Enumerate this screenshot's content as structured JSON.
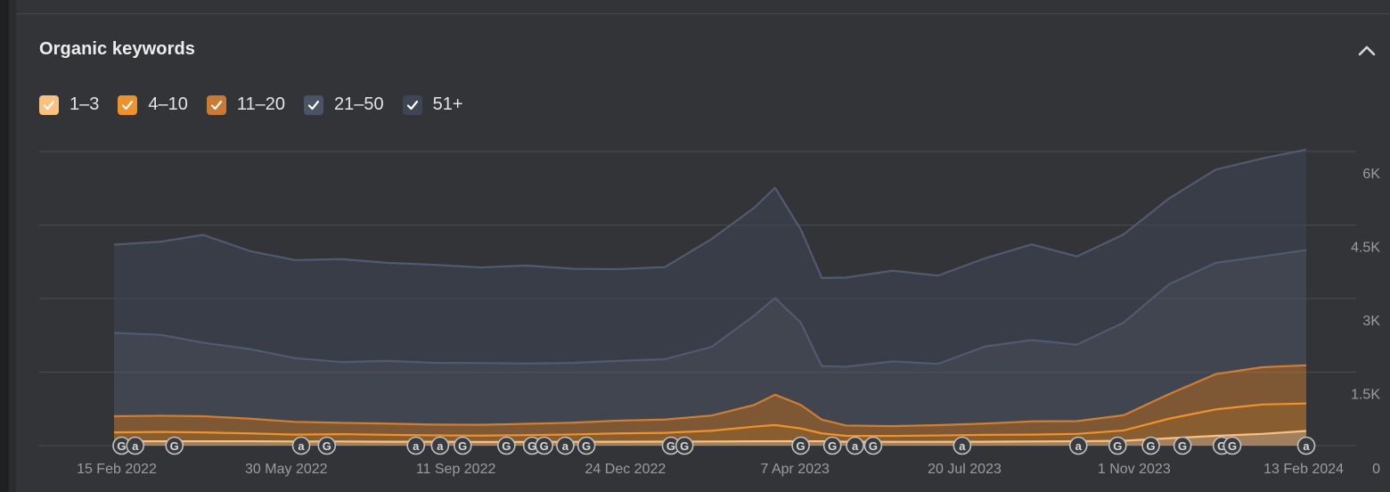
{
  "header": {
    "title": "Organic keywords"
  },
  "legend": [
    {
      "label": "1–3",
      "color": "#f9c07f"
    },
    {
      "label": "4–10",
      "color": "#f0922b"
    },
    {
      "label": "11–20",
      "color": "#c97a34"
    },
    {
      "label": "21–50",
      "color": "#4a5466"
    },
    {
      "label": "51+",
      "color": "#3e4655"
    }
  ],
  "icons": {
    "collapse": "chevron-up-icon",
    "check": "check-icon",
    "google_update": "google-update-icon",
    "annotation": "annotation-icon"
  },
  "chart_data": {
    "type": "area",
    "stacked": true,
    "x_ticks": [
      "15 Feb 2022",
      "30 May 2022",
      "11 Sep 2022",
      "24 Dec 2022",
      "7 Apr 2023",
      "20 Jul 2023",
      "1 Nov 2023",
      "13 Feb 2024"
    ],
    "y_ticks": [
      "0",
      "1.5K",
      "3K",
      "4.5K",
      "6K"
    ],
    "ylim": [
      0,
      6000
    ],
    "grid": true,
    "x": [
      "2022-01-01",
      "2022-02-01",
      "2022-03-01",
      "2022-04-01",
      "2022-05-01",
      "2022-06-01",
      "2022-07-01",
      "2022-08-01",
      "2022-09-01",
      "2022-10-01",
      "2022-11-01",
      "2022-12-01",
      "2023-01-01",
      "2023-02-01",
      "2023-03-01",
      "2023-03-15",
      "2023-04-01",
      "2023-04-15",
      "2023-05-01",
      "2023-06-01",
      "2023-07-01",
      "2023-08-01",
      "2023-09-01",
      "2023-10-01",
      "2023-11-01",
      "2023-12-01",
      "2024-01-01",
      "2024-02-01",
      "2024-03-01"
    ],
    "series": [
      {
        "name": "1–3",
        "values": [
          90,
          90,
          90,
          90,
          85,
          85,
          80,
          80,
          75,
          75,
          78,
          80,
          82,
          85,
          88,
          90,
          92,
          90,
          80,
          78,
          78,
          80,
          85,
          90,
          100,
          150,
          200,
          240,
          300
        ]
      },
      {
        "name": "4–10",
        "values": [
          180,
          190,
          180,
          160,
          140,
          150,
          140,
          130,
          130,
          140,
          150,
          170,
          180,
          220,
          300,
          330,
          260,
          160,
          120,
          120,
          130,
          140,
          140,
          150,
          210,
          400,
          540,
          600,
          560
        ]
      },
      {
        "name": "11–20",
        "values": [
          330,
          330,
          330,
          300,
          260,
          230,
          230,
          220,
          220,
          230,
          240,
          260,
          270,
          310,
          440,
          620,
          480,
          280,
          210,
          200,
          210,
          230,
          270,
          260,
          310,
          500,
          720,
          760,
          780
        ]
      },
      {
        "name": "21–50",
        "values": [
          1700,
          1650,
          1500,
          1420,
          1300,
          1240,
          1280,
          1260,
          1260,
          1230,
          1220,
          1220,
          1230,
          1400,
          1820,
          1970,
          1680,
          1090,
          1200,
          1320,
          1250,
          1570,
          1660,
          1560,
          1890,
          2240,
          2270,
          2260,
          2350
        ]
      },
      {
        "name": "51+",
        "values": [
          1800,
          1900,
          2200,
          2000,
          2000,
          2100,
          2000,
          2000,
          1950,
          2000,
          1920,
          1870,
          1880,
          2200,
          2200,
          2250,
          1900,
          1800,
          1820,
          1850,
          1800,
          1800,
          1950,
          1800,
          1800,
          1750,
          1900,
          2000,
          2050
        ]
      }
    ],
    "markers": [
      {
        "x": "2022-01-06",
        "icon": "G"
      },
      {
        "x": "2022-01-15",
        "icon": "a"
      },
      {
        "x": "2022-02-10",
        "icon": "G"
      },
      {
        "x": "2022-05-05",
        "icon": "a"
      },
      {
        "x": "2022-05-22",
        "icon": "G"
      },
      {
        "x": "2022-07-20",
        "icon": "a"
      },
      {
        "x": "2022-08-05",
        "icon": "a"
      },
      {
        "x": "2022-08-20",
        "icon": "G"
      },
      {
        "x": "2022-09-18",
        "icon": "G"
      },
      {
        "x": "2022-10-05",
        "icon": "G"
      },
      {
        "x": "2022-10-13",
        "icon": "G"
      },
      {
        "x": "2022-10-27",
        "icon": "a"
      },
      {
        "x": "2022-11-10",
        "icon": "G"
      },
      {
        "x": "2023-01-05",
        "icon": "G"
      },
      {
        "x": "2023-01-14",
        "icon": "G"
      },
      {
        "x": "2023-04-01",
        "icon": "G"
      },
      {
        "x": "2023-04-22",
        "icon": "G"
      },
      {
        "x": "2023-05-07",
        "icon": "a"
      },
      {
        "x": "2023-05-19",
        "icon": "G"
      },
      {
        "x": "2023-07-17",
        "icon": "a"
      },
      {
        "x": "2023-10-02",
        "icon": "a"
      },
      {
        "x": "2023-10-28",
        "icon": "G"
      },
      {
        "x": "2023-11-19",
        "icon": "G"
      },
      {
        "x": "2023-12-10",
        "icon": "G"
      },
      {
        "x": "2024-01-05",
        "icon": "G"
      },
      {
        "x": "2024-01-12",
        "icon": "G"
      },
      {
        "x": "2024-03-10",
        "icon": "a"
      }
    ]
  }
}
